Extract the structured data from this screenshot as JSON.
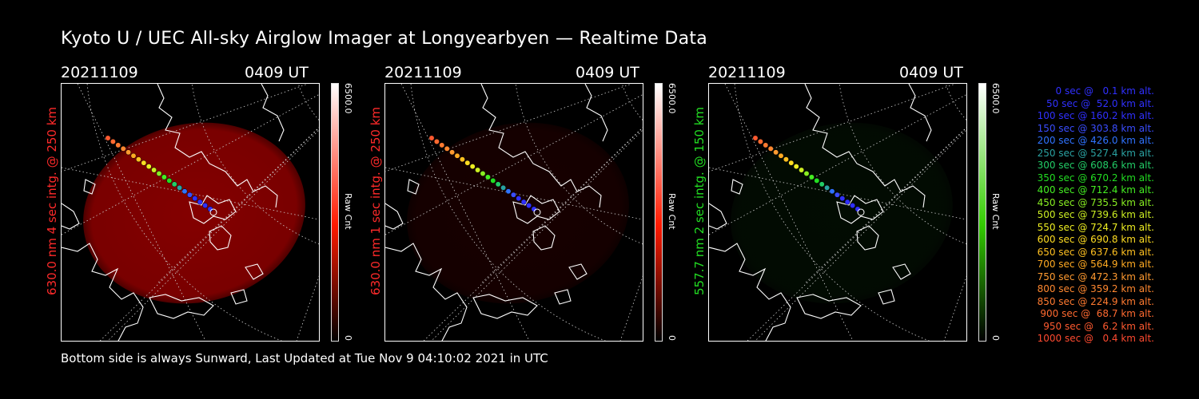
{
  "title": "Kyoto U / UEC All-sky Airglow Imager at Longyearbyen — Realtime Data",
  "footer": "Bottom side is always Sunward, Last Updated at Tue Nov  9 04:10:02 2021 in UTC",
  "panels": [
    {
      "date": "20211109",
      "time": "0409 UT",
      "label": "630.0 nm 4 sec intg. @ 250 km",
      "label_color": "#ff2a2a",
      "colorbar": {
        "max": "6500.0",
        "unit": "Raw Cnt",
        "min": "0",
        "color": "#ff1a00"
      },
      "glow_color": "#b00000",
      "glow_level": 0.75
    },
    {
      "date": "20211109",
      "time": "0409 UT",
      "label": "630.0 nm 1 sec intg. @ 250 km",
      "label_color": "#ff2a2a",
      "colorbar": {
        "max": "6500.0",
        "unit": "Raw Cnt",
        "min": "0",
        "color": "#ff1a00"
      },
      "glow_color": "#5a0000",
      "glow_level": 0.25
    },
    {
      "date": "20211109",
      "time": "0409 UT",
      "label": "557.7 nm 2 sec intg. @ 150 km",
      "label_color": "#22dd22",
      "colorbar": {
        "max": "6500.0",
        "unit": "Raw Cnt",
        "min": "0",
        "color": "#33cc00"
      },
      "glow_color": "#0c3a0c",
      "glow_level": 0.2
    }
  ],
  "legend": [
    {
      "text": "0 sec @   0.1 km alt.",
      "color": "#3030ff"
    },
    {
      "text": "50 sec @  52.0 km alt.",
      "color": "#3030ff"
    },
    {
      "text": "100 sec @ 160.2 km alt.",
      "color": "#3030ff"
    },
    {
      "text": "150 sec @ 303.8 km alt.",
      "color": "#3a4dff"
    },
    {
      "text": "200 sec @ 426.0 km alt.",
      "color": "#2f73ff"
    },
    {
      "text": "250 sec @ 527.4 km alt.",
      "color": "#2aa2a2"
    },
    {
      "text": "300 sec @ 608.6 km alt.",
      "color": "#22cc66"
    },
    {
      "text": "350 sec @ 670.2 km alt.",
      "color": "#22dd22"
    },
    {
      "text": "400 sec @ 712.4 km alt.",
      "color": "#44ee22"
    },
    {
      "text": "450 sec @ 735.5 km alt.",
      "color": "#88ee22"
    },
    {
      "text": "500 sec @ 739.6 km alt.",
      "color": "#ccee22"
    },
    {
      "text": "550 sec @ 724.7 km alt.",
      "color": "#eeee22"
    },
    {
      "text": "600 sec @ 690.8 km alt.",
      "color": "#ffdd22"
    },
    {
      "text": "650 sec @ 637.6 km alt.",
      "color": "#ffc020"
    },
    {
      "text": "700 sec @ 564.9 km alt.",
      "color": "#ffaa22"
    },
    {
      "text": "750 sec @ 472.3 km alt.",
      "color": "#ff9a30"
    },
    {
      "text": "800 sec @ 359.2 km alt.",
      "color": "#ff8830"
    },
    {
      "text": "850 sec @ 224.9 km alt.",
      "color": "#ff7a30"
    },
    {
      "text": "900 sec @  68.7 km alt.",
      "color": "#ff6a30"
    },
    {
      "text": "950 sec @   6.2 km alt.",
      "color": "#ff5a30"
    },
    {
      "text": "1000 sec @   0.4 km alt.",
      "color": "#ff4a30"
    }
  ],
  "track_point_colors": [
    "#ff5a30",
    "#ff6a30",
    "#ff7a30",
    "#ff8830",
    "#ff9a30",
    "#ffaa22",
    "#ffc020",
    "#ffdd22",
    "#eeee22",
    "#ccee22",
    "#88ee22",
    "#44ee22",
    "#22dd22",
    "#22cc66",
    "#2aa2a2",
    "#2f73ff",
    "#3a4dff",
    "#3030ff",
    "#3030ff",
    "#3030ff",
    "#3030ff"
  ]
}
